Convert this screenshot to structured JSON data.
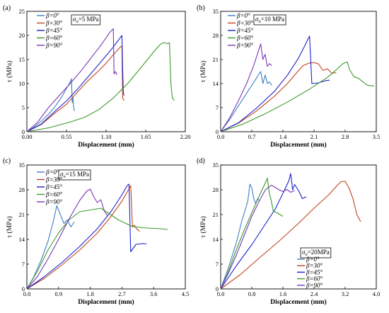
{
  "figure": {
    "xlabel": "Displacement (mm)",
    "ylabel": "τ (MPa)"
  },
  "colors": {
    "0": "#3d7fc2",
    "30": "#c0441f",
    "45": "#1c22cc",
    "60": "#3e9a2e",
    "90": "#7a35b8"
  },
  "chart_data": [
    {
      "type": "line",
      "panel_label": "(a)",
      "annotation": "σn=5 MPa",
      "sigma_sym": "σ",
      "sigma_sub": "n",
      "sigma_val": "=5 MPa",
      "xlabel": "Displacement (mm)",
      "ylabel": "τ (MPa)",
      "xlim": [
        0,
        2.2
      ],
      "ylim": [
        0,
        25
      ],
      "xticks": [
        0.0,
        0.55,
        1.1,
        1.65,
        2.2
      ],
      "xtick_labels": [
        "0.00",
        "0.55",
        "1.10",
        "1.65",
        "2.20"
      ],
      "yticks": [
        0,
        5,
        10,
        15,
        20,
        25
      ],
      "ytick_labels": [
        "0",
        "5",
        "10",
        "15",
        "20",
        "25"
      ],
      "legend_position": "top-left",
      "legend": [
        "β=0°",
        "β=30°",
        "β=45°",
        "β=60°",
        "β=90°"
      ],
      "series": [
        {
          "name": "β=0°",
          "key": "0",
          "x": [
            0,
            0.1,
            0.2,
            0.3,
            0.4,
            0.5,
            0.55,
            0.6,
            0.62,
            0.63,
            0.64,
            0.65,
            0.66
          ],
          "y": [
            0,
            1,
            2.2,
            3.6,
            5.4,
            7.6,
            9,
            10.3,
            11,
            6,
            7,
            5,
            4.3
          ]
        },
        {
          "name": "β=30°",
          "key": "30",
          "x": [
            0,
            0.2,
            0.4,
            0.55,
            0.7,
            0.85,
            1.0,
            1.1,
            1.2,
            1.25,
            1.28,
            1.3,
            1.32,
            1.33,
            1.35
          ],
          "y": [
            0,
            1.5,
            4,
            5.7,
            8.2,
            10.6,
            12.7,
            14.2,
            16,
            16.8,
            17.3,
            17.6,
            17.8,
            7,
            6.5
          ]
        },
        {
          "name": "β=45°",
          "key": "45",
          "x": [
            0,
            0.2,
            0.4,
            0.55,
            0.7,
            0.85,
            1.0,
            1.1,
            1.2,
            1.25,
            1.3,
            1.32,
            1.33,
            1.34,
            1.35
          ],
          "y": [
            0,
            1.6,
            4.4,
            6.4,
            8.8,
            11.4,
            14,
            15.8,
            17.6,
            18.6,
            19.6,
            20,
            13,
            8,
            7.5
          ]
        },
        {
          "name": "β=60°",
          "key": "60",
          "x": [
            0,
            0.3,
            0.6,
            0.8,
            1.0,
            1.2,
            1.4,
            1.6,
            1.75,
            1.85,
            1.9,
            1.95,
            1.98,
            2.0,
            2.02,
            2.05
          ],
          "y": [
            0,
            0.8,
            2,
            3,
            4.6,
            7,
            10,
            13.6,
            16.4,
            18.1,
            18.5,
            18.3,
            18.5,
            10,
            7,
            6.5
          ]
        },
        {
          "name": "β=90°",
          "key": "90",
          "x": [
            0,
            0.15,
            0.3,
            0.45,
            0.6,
            0.75,
            0.9,
            1.0,
            1.1,
            1.15,
            1.2,
            1.21,
            1.23,
            1.25
          ],
          "y": [
            0,
            2,
            5,
            7.5,
            10,
            12.6,
            15.5,
            17.4,
            19.5,
            20.6,
            21.4,
            12,
            12.5,
            11.8
          ]
        }
      ]
    },
    {
      "type": "line",
      "panel_label": "(b)",
      "annotation": "σn=10 MPa",
      "sigma_sym": "σ",
      "sigma_sub": "n",
      "sigma_val": "=10 MPa",
      "xlabel": "Displacement (mm)",
      "ylabel": "τ (MPa)",
      "xlim": [
        0,
        3.5
      ],
      "ylim": [
        0,
        35
      ],
      "xticks": [
        0.0,
        0.7,
        1.4,
        2.1,
        2.8,
        3.5
      ],
      "xtick_labels": [
        "0.0",
        "0.7",
        "1.4",
        "2.1",
        "2.8",
        "3.5"
      ],
      "yticks": [
        0,
        7,
        14,
        21,
        28,
        35
      ],
      "ytick_labels": [
        "0",
        "7",
        "14",
        "21",
        "28",
        "35"
      ],
      "legend_position": "top-left",
      "legend": [
        "β=0°",
        "β=30°",
        "β=45°",
        "β=60°",
        "β=90°"
      ],
      "series": [
        {
          "name": "β=0°",
          "key": "0",
          "x": [
            0,
            0.2,
            0.4,
            0.6,
            0.8,
            0.9,
            0.95,
            1.0,
            1.05,
            1.1,
            1.15
          ],
          "y": [
            0,
            3.5,
            7.5,
            11.5,
            15.5,
            17.5,
            14,
            16.5,
            14,
            14.5,
            13.5
          ]
        },
        {
          "name": "β=30°",
          "key": "30",
          "x": [
            0,
            0.4,
            0.8,
            1.2,
            1.5,
            1.7,
            1.85,
            2.0,
            2.1,
            2.2,
            2.3,
            2.4,
            2.5,
            2.6
          ],
          "y": [
            0,
            2.5,
            6,
            10.2,
            14,
            17,
            19.2,
            20,
            20.1,
            19.7,
            17.8,
            18.3,
            17,
            17.2
          ]
        },
        {
          "name": "β=45°",
          "key": "45",
          "x": [
            0,
            0.4,
            0.8,
            1.2,
            1.5,
            1.75,
            1.9,
            1.95,
            2.0,
            2.05,
            2.2,
            2.35,
            2.45
          ],
          "y": [
            0,
            2.6,
            6.8,
            11.6,
            16.4,
            21.4,
            25.2,
            26.6,
            27.8,
            14,
            14.2,
            14.8,
            15
          ]
        },
        {
          "name": "β=60°",
          "key": "60",
          "x": [
            0,
            0.5,
            1.0,
            1.5,
            2.0,
            2.4,
            2.6,
            2.75,
            2.85,
            2.9,
            3.0,
            3.1,
            3.2,
            3.3,
            3.45
          ],
          "y": [
            0,
            2.2,
            5.2,
            8.6,
            12.4,
            15.8,
            18,
            19.8,
            20.3,
            18,
            16,
            15.5,
            14.5,
            13.5,
            13.3
          ]
        },
        {
          "name": "β=90°",
          "key": "90",
          "x": [
            0,
            0.2,
            0.4,
            0.6,
            0.75,
            0.85,
            0.9,
            0.95,
            1.0,
            1.05,
            1.1,
            1.15
          ],
          "y": [
            0,
            4,
            9,
            14.5,
            19.5,
            23.5,
            25.5,
            21,
            22.5,
            19,
            19.8,
            19.2
          ]
        }
      ]
    },
    {
      "type": "line",
      "panel_label": "(c)",
      "annotation": "σn=15 MPa",
      "sigma_sym": "σ",
      "sigma_sub": "n",
      "sigma_val": "=15 MPa",
      "xlabel": "Displacement (mm)",
      "ylabel": "τ (MPa)",
      "xlim": [
        0,
        4.5
      ],
      "ylim": [
        0,
        35
      ],
      "xticks": [
        0.0,
        0.9,
        1.8,
        2.7,
        3.6,
        4.5
      ],
      "xtick_labels": [
        "0.0",
        "0.9",
        "1.8",
        "2.7",
        "3.6",
        "4.5"
      ],
      "yticks": [
        0,
        7,
        14,
        21,
        28,
        35
      ],
      "ytick_labels": [
        "0",
        "7",
        "14",
        "21",
        "28",
        "35"
      ],
      "legend_position": "top-left",
      "legend": [
        "β=0°",
        "β=30°",
        "β=45°",
        "β=60°",
        "β=90°"
      ],
      "series": [
        {
          "name": "β=0°",
          "key": "0",
          "x": [
            0,
            0.2,
            0.4,
            0.6,
            0.75,
            0.85,
            0.95,
            1.05,
            1.15,
            1.25,
            1.35
          ],
          "y": [
            0,
            3.5,
            8,
            13.5,
            19,
            23.5,
            21,
            18.5,
            19.5,
            17.5,
            19
          ]
        },
        {
          "name": "β=30°",
          "key": "30",
          "x": [
            0,
            0.5,
            1.0,
            1.5,
            2.0,
            2.4,
            2.7,
            2.85,
            2.95,
            3.0,
            3.05,
            3.1,
            3.2
          ],
          "y": [
            0,
            3,
            6.8,
            11,
            15.8,
            20.6,
            24.8,
            27.4,
            29.2,
            17.5,
            18,
            17.2,
            16.2
          ]
        },
        {
          "name": "β=45°",
          "key": "45",
          "x": [
            0,
            0.5,
            1.0,
            1.5,
            2.0,
            2.4,
            2.7,
            2.85,
            2.9,
            2.95,
            3.1,
            3.3,
            3.4
          ],
          "y": [
            0,
            3.5,
            7.5,
            12,
            17,
            22,
            26.6,
            29.2,
            29.6,
            10.5,
            12.6,
            12.8,
            12.7
          ]
        },
        {
          "name": "β=60°",
          "key": "60",
          "x": [
            0,
            0.3,
            0.6,
            0.9,
            1.2,
            1.5,
            1.8,
            2.1,
            2.3,
            2.6,
            3.0,
            3.4,
            3.8,
            4.0
          ],
          "y": [
            0,
            5,
            11,
            15.8,
            19.5,
            21.8,
            22.3,
            22.8,
            21.5,
            19.5,
            17.6,
            17.2,
            17,
            16.8
          ]
        },
        {
          "name": "β=90°",
          "key": "90",
          "x": [
            0,
            0.3,
            0.6,
            0.9,
            1.2,
            1.5,
            1.7,
            1.8,
            1.9,
            2.0,
            2.1,
            2.2,
            2.3
          ],
          "y": [
            0,
            3.5,
            8.5,
            14,
            19.8,
            25,
            27.6,
            28.2,
            26,
            24.4,
            25.2,
            22,
            20.5
          ]
        }
      ]
    },
    {
      "type": "line",
      "panel_label": "(d)",
      "annotation": "σn=20MPa",
      "sigma_sym": "σ",
      "sigma_sub": "n",
      "sigma_val": "=20MPa",
      "xlabel": "Displacement (mm)",
      "ylabel": "τ (MPa)",
      "xlim": [
        0,
        4.0
      ],
      "ylim": [
        0,
        35
      ],
      "xticks": [
        0.0,
        0.8,
        1.6,
        2.4,
        3.2,
        4.0
      ],
      "xtick_labels": [
        "0.0",
        "0.8",
        "1.6",
        "2.4",
        "3.2",
        "4.0"
      ],
      "yticks": [
        0,
        7,
        14,
        21,
        28,
        35
      ],
      "ytick_labels": [
        "0",
        "7",
        "14",
        "21",
        "28",
        "35"
      ],
      "legend_position": "bottom-right",
      "legend": [
        "β=0°",
        "β=30°",
        "β=45°",
        "β=60°",
        "β=90°"
      ],
      "series": [
        {
          "name": "β=0°",
          "key": "0",
          "x": [
            0,
            0.2,
            0.4,
            0.55,
            0.65,
            0.7,
            0.75,
            0.8,
            0.85,
            0.9,
            0.95,
            1.0
          ],
          "y": [
            0,
            6,
            13,
            19.5,
            23,
            25,
            29.6,
            28.5,
            25.5,
            24.2,
            25.5,
            24.8
          ]
        },
        {
          "name": "β=30°",
          "key": "30",
          "x": [
            0,
            0.5,
            1.0,
            1.5,
            2.0,
            2.4,
            2.8,
            3.0,
            3.1,
            3.2,
            3.3,
            3.4,
            3.5,
            3.6
          ],
          "y": [
            0,
            4,
            8.8,
            13.5,
            18.5,
            22.8,
            26.8,
            29.3,
            30.3,
            30.4,
            28.5,
            25.5,
            21,
            19
          ]
        },
        {
          "name": "β=45°",
          "key": "45",
          "x": [
            0,
            0.4,
            0.8,
            1.1,
            1.4,
            1.6,
            1.75,
            1.8,
            1.85,
            1.9,
            2.0,
            2.1,
            2.2
          ],
          "y": [
            0,
            6.5,
            12.5,
            17.5,
            22.5,
            27,
            30.5,
            32.6,
            28,
            29.5,
            27.8,
            25.5,
            26
          ]
        },
        {
          "name": "β=60°",
          "key": "60",
          "x": [
            0,
            0.2,
            0.4,
            0.6,
            0.8,
            1.0,
            1.15,
            1.2,
            1.25,
            1.3,
            1.35,
            1.45,
            1.6
          ],
          "y": [
            0,
            5,
            11,
            16.5,
            21.5,
            26.5,
            30,
            31.3,
            27,
            25,
            22,
            21.5,
            20.5
          ]
        },
        {
          "name": "β=90°",
          "key": "90",
          "x": [
            0,
            0.2,
            0.4,
            0.6,
            0.8,
            1.0,
            1.15,
            1.3,
            1.4,
            1.5,
            1.6,
            1.7,
            1.8,
            1.9
          ],
          "y": [
            0,
            4.5,
            9.5,
            15,
            20.5,
            25,
            28,
            29.3,
            28.7,
            28,
            27.5,
            28.1,
            27.3,
            27.8
          ]
        }
      ]
    }
  ]
}
